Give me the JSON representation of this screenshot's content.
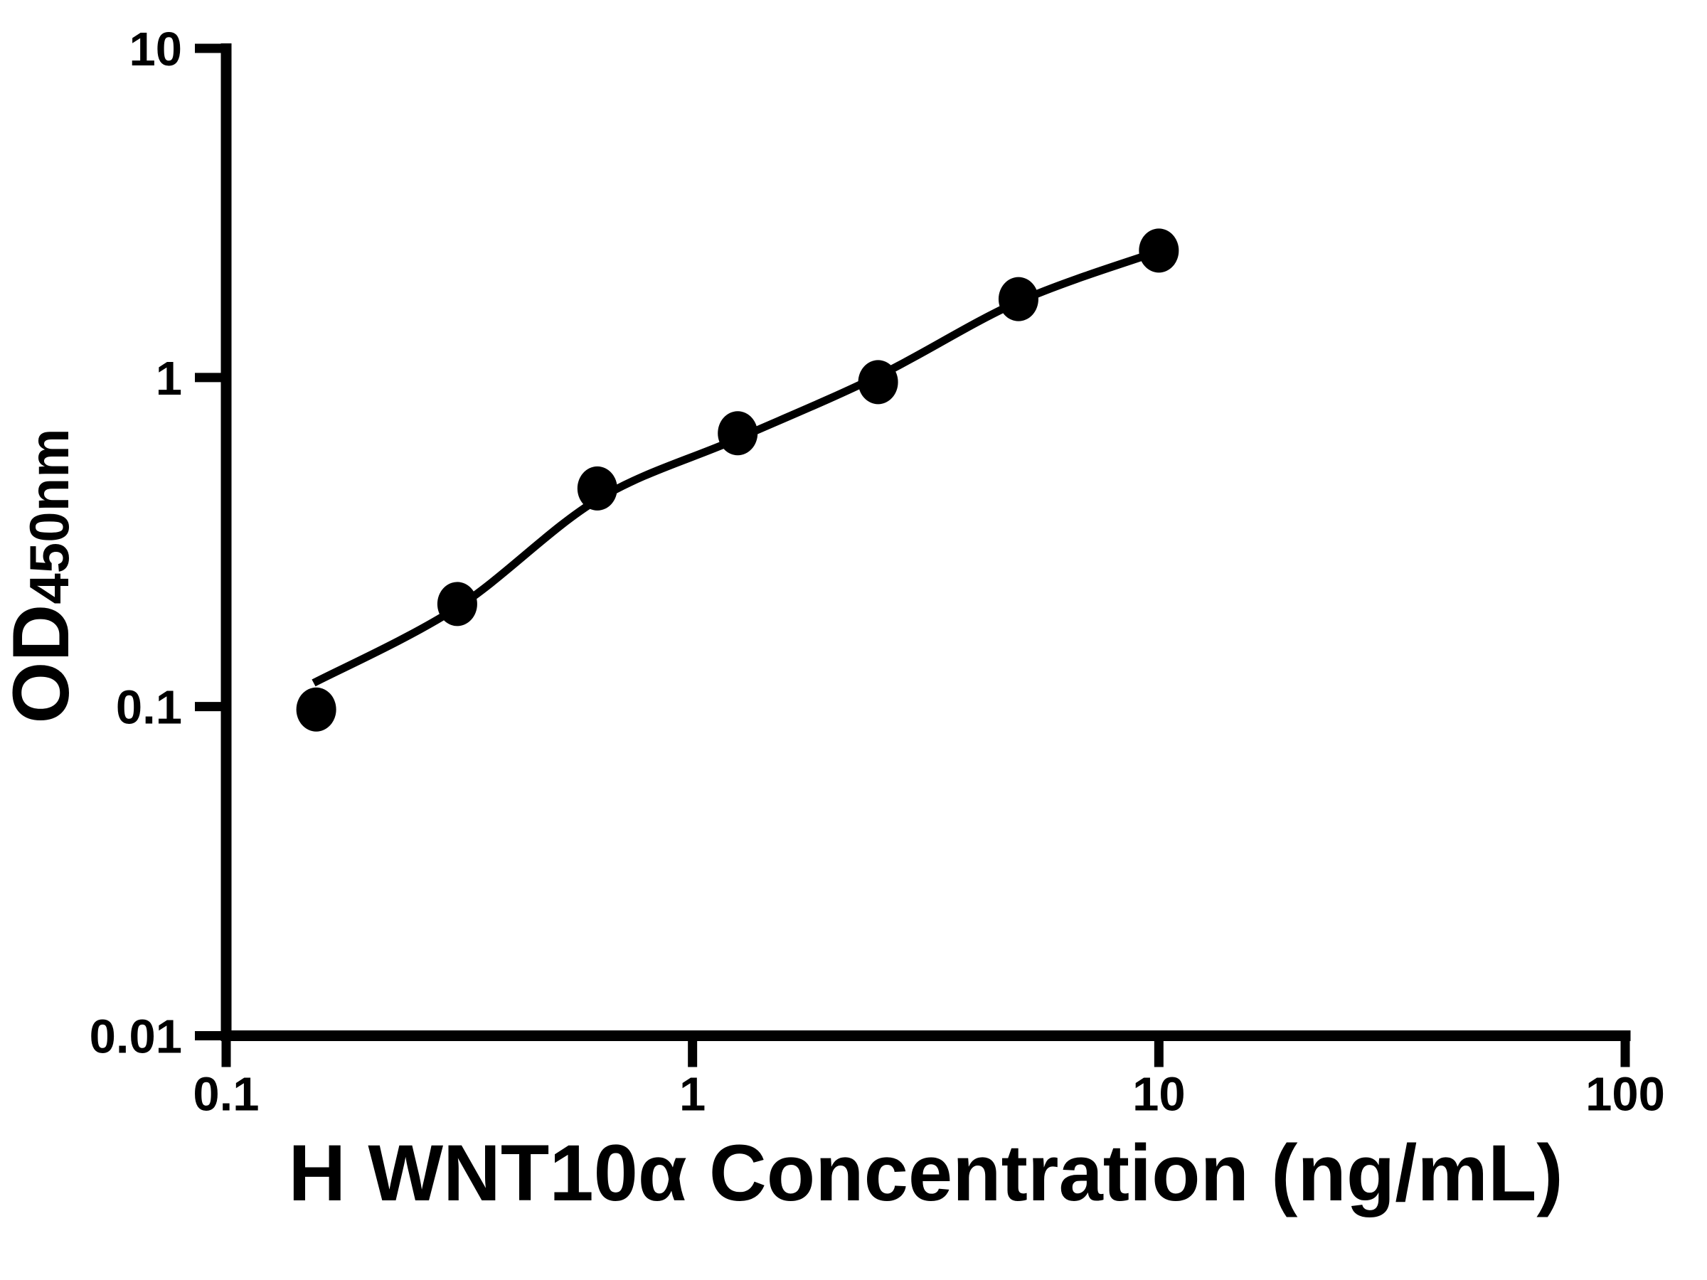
{
  "figure": {
    "background": "#ffffff",
    "ink_color": "#000000"
  },
  "chart_data": {
    "type": "scatter",
    "title": "",
    "xlabel": "H WNT10α Concentration (ng/mL)",
    "ylabel_main": "OD",
    "ylabel_sub": "450nm",
    "x_scale": "log",
    "y_scale": "log",
    "xlim": [
      0.1,
      100
    ],
    "ylim": [
      0.01,
      10
    ],
    "grid": false,
    "legend": null,
    "x_ticks": [
      {
        "value": 0.1,
        "label": "0.1"
      },
      {
        "value": 1,
        "label": "1"
      },
      {
        "value": 10,
        "label": "10"
      },
      {
        "value": 100,
        "label": "100"
      }
    ],
    "y_ticks": [
      {
        "value": 10,
        "label": "10"
      },
      {
        "value": 1,
        "label": "1"
      },
      {
        "value": 0.1,
        "label": "0.1"
      },
      {
        "value": 0.01,
        "label": "0.01"
      }
    ],
    "series": [
      {
        "name": "standard-points",
        "marker": "circle",
        "color": "#000000",
        "points": [
          {
            "x": 0.156,
            "y": 0.098
          },
          {
            "x": 0.313,
            "y": 0.205
          },
          {
            "x": 0.625,
            "y": 0.46
          },
          {
            "x": 1.25,
            "y": 0.677
          },
          {
            "x": 2.5,
            "y": 0.968
          },
          {
            "x": 5,
            "y": 1.73
          },
          {
            "x": 10,
            "y": 2.43
          }
        ]
      }
    ],
    "fit_curve": {
      "color": "#000000",
      "points": [
        {
          "x": 0.154,
          "y": 0.118
        },
        {
          "x": 0.313,
          "y": 0.2
        },
        {
          "x": 0.625,
          "y": 0.425
        },
        {
          "x": 1.25,
          "y": 0.652
        },
        {
          "x": 2.5,
          "y": 1.01
        },
        {
          "x": 5,
          "y": 1.7
        },
        {
          "x": 10,
          "y": 2.42
        }
      ]
    }
  }
}
